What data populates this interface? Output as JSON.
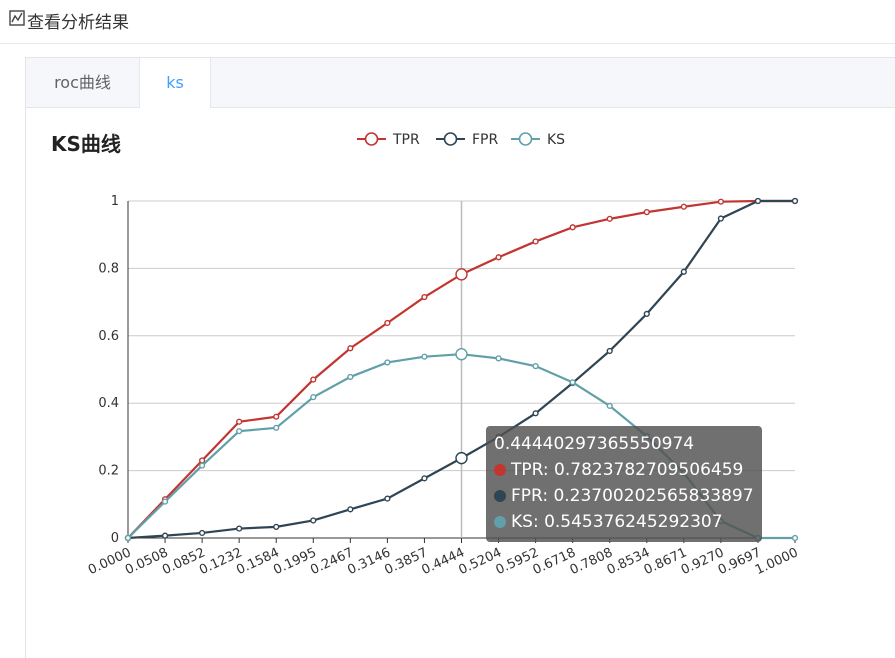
{
  "header": {
    "icon": "chart-report-icon",
    "title": "查看分析结果"
  },
  "tabs": [
    {
      "label": "roc曲线",
      "active": false
    },
    {
      "label": "ks",
      "active": true
    }
  ],
  "chart_data": {
    "type": "line",
    "title": "KS曲线",
    "categories": [
      "0.0000",
      "0.0508",
      "0.0852",
      "0.1232",
      "0.1584",
      "0.1995",
      "0.2467",
      "0.3146",
      "0.3857",
      "0.4444",
      "0.5204",
      "0.5952",
      "0.6718",
      "0.7808",
      "0.8534",
      "0.8671",
      "0.9270",
      "0.9697",
      "1.0000"
    ],
    "series": [
      {
        "name": "TPR",
        "color": "#c23531",
        "values": [
          0,
          0.115,
          0.23,
          0.345,
          0.36,
          0.47,
          0.563,
          0.638,
          0.715,
          0.7823782709506459,
          0.833,
          0.88,
          0.922,
          0.947,
          0.967,
          0.983,
          0.998,
          1,
          1
        ]
      },
      {
        "name": "FPR",
        "color": "#2f4554",
        "values": [
          0,
          0.007,
          0.015,
          0.028,
          0.033,
          0.052,
          0.085,
          0.117,
          0.177,
          0.23700202565833897,
          0.3,
          0.37,
          0.46,
          0.555,
          0.665,
          0.79,
          0.948,
          1,
          1
        ]
      },
      {
        "name": "KS",
        "color": "#61a0a8",
        "values": [
          0,
          0.108,
          0.215,
          0.317,
          0.327,
          0.418,
          0.478,
          0.521,
          0.538,
          0.545376245292307,
          0.533,
          0.51,
          0.462,
          0.392,
          0.302,
          0.193,
          0.05,
          0,
          0
        ]
      }
    ],
    "ylim": [
      0,
      1
    ],
    "yticks": [
      "0",
      "0.2",
      "0.4",
      "0.6",
      "0.8",
      "1"
    ],
    "grid": true,
    "legend_position": "top-center",
    "highlight_index": 9
  },
  "tooltip": {
    "title": "0.44440297365550974",
    "rows": [
      {
        "label": "TPR: 0.7823782709506459",
        "color": "#c23531"
      },
      {
        "label": "FPR: 0.23700202565833897",
        "color": "#2f4554"
      },
      {
        "label": "KS: 0.545376245292307",
        "color": "#61a0a8"
      }
    ]
  }
}
